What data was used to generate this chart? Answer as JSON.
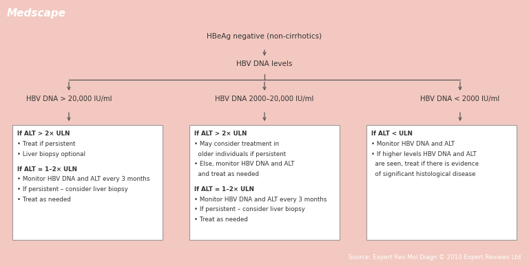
{
  "title": "Medscape",
  "header_bg": "#3a7abf",
  "header_text_color": "#ffffff",
  "background_color": "#f2c8c0",
  "box_bg": "#ffffff",
  "box_edge_color": "#999999",
  "arrow_color": "#555555",
  "text_color": "#333333",
  "footer_bg": "#3a7abf",
  "footer_text": "Source: Expert Rev Mol Diagn © 2010 Expert Reviews Ltd",
  "footer_text_color": "#ffffff",
  "node_top": "HBeAg negative (non-cirrhotics)",
  "node_mid": "HBV DNA levels",
  "branch_labels": [
    "HBV DNA > 20,000 IU/ml",
    "HBV DNA 2000–20,000 IU/ml",
    "HBV DNA < 2000 IU/ml"
  ],
  "box1_lines": [
    [
      "If ALT > 2× ULN",
      true
    ],
    [
      "• Treat if persistent",
      false
    ],
    [
      "• Liver biopsy optional",
      false
    ],
    [
      "",
      false
    ],
    [
      "If ALT = 1–2× ULN",
      true
    ],
    [
      "• Monitor HBV DNA and ALT every 3 months",
      false
    ],
    [
      "• If persistent – consider liver biopsy",
      false
    ],
    [
      "• Treat as needed",
      false
    ]
  ],
  "box2_lines": [
    [
      "If ALT > 2× ULN",
      true
    ],
    [
      "• May consider treatment in",
      false
    ],
    [
      "  older individuals if persistent",
      false
    ],
    [
      "• Else, monitor HBV DNA and ALT",
      false
    ],
    [
      "  and treat as needed",
      false
    ],
    [
      "",
      false
    ],
    [
      "If ALT = 1–2× ULN",
      true
    ],
    [
      "• Monitor HBV DNA and ALT every 3 months",
      false
    ],
    [
      "• If persistent – consider liver biopsy",
      false
    ],
    [
      "• Treat as needed",
      false
    ]
  ],
  "box3_lines": [
    [
      "If ALT < ULN",
      true
    ],
    [
      "• Monitor HBV DNA and ALT",
      false
    ],
    [
      "• If higher levels HBV DNA and ALT",
      false
    ],
    [
      "  are seen, treat if there is evidence",
      false
    ],
    [
      "  of significant histological disease",
      false
    ]
  ]
}
